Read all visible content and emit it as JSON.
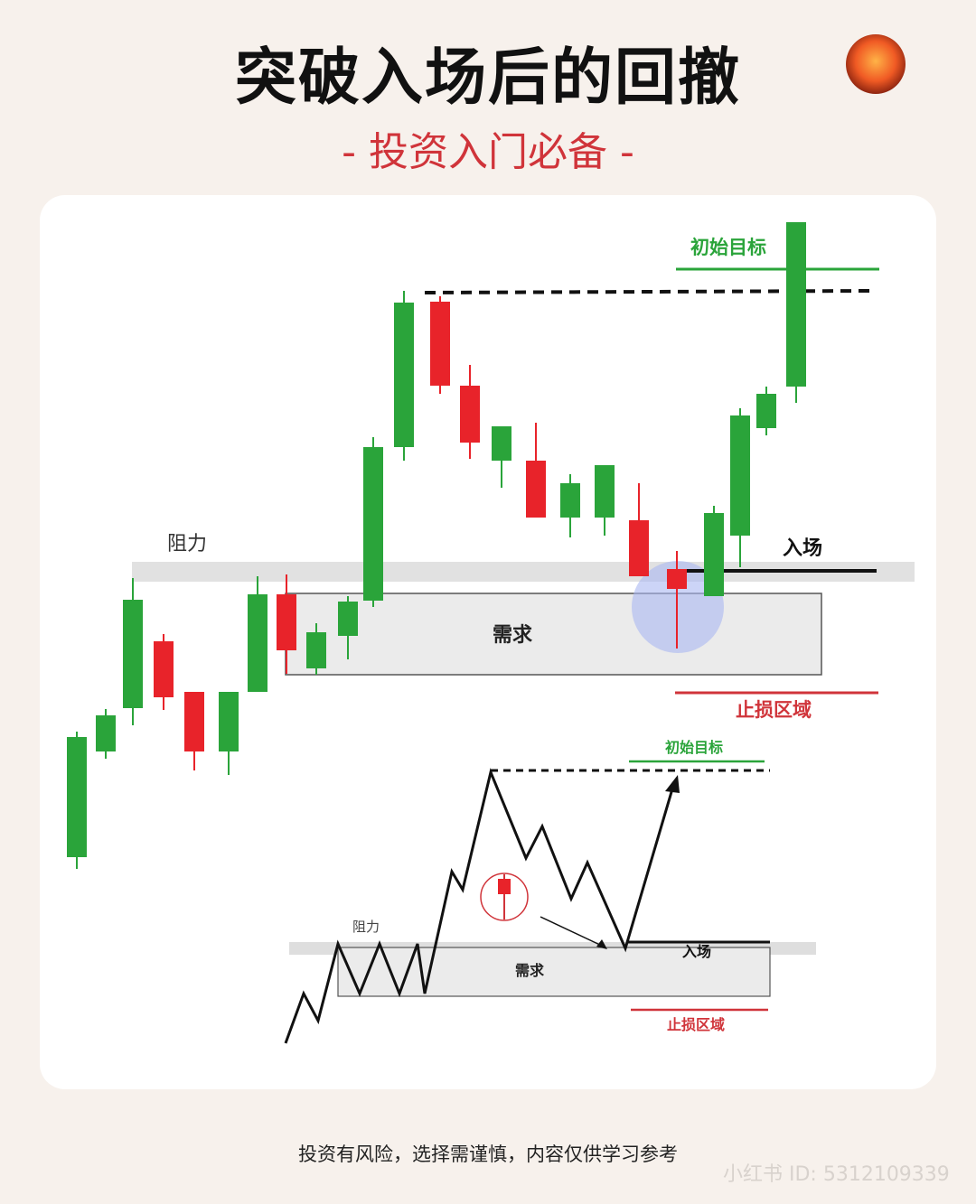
{
  "header": {
    "title": "突破入场后的回撤",
    "subtitle": "- 投资入门必备 -"
  },
  "logo": {
    "icon": "mountain-sun-logo"
  },
  "diagram_top": {
    "labels": {
      "resistance": "阻力",
      "demand": "需求",
      "initial_target": "初始目标",
      "entry": "入场",
      "stop_loss": "止损区域"
    },
    "candles": [
      {
        "o": 0,
        "h": 0,
        "l": 0,
        "c": 0,
        "color": "green"
      }
    ]
  },
  "diagram_bottom": {
    "labels": {
      "resistance": "阻力",
      "demand": "需求",
      "initial_target": "初始目标",
      "entry": "入场",
      "stop_loss": "止损区域"
    }
  },
  "colors": {
    "bull": "#2aa43a",
    "bear": "#e8232a",
    "target": "#2aa43a",
    "stop": "#d0343a",
    "zone": "#e8e8e8"
  },
  "footer": {
    "disclaimer": "投资有风险，选择需谨慎，内容仅供学习参考",
    "watermark": "小红书 ID: 5312109339"
  }
}
